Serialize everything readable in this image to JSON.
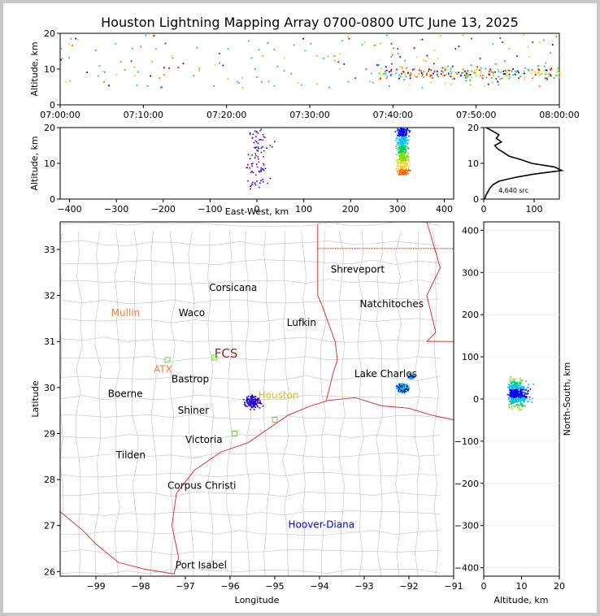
{
  "title": "Houston Lightning Mapping Array 0700-0800 UTC June 13, 2025",
  "panels": {
    "time_height": {
      "ylabel": "Altitude, km",
      "yticks": [
        "0",
        "10",
        "20"
      ],
      "xticks": [
        "07:00:00",
        "07:10:00",
        "07:20:00",
        "07:30:00",
        "07:40:00",
        "07:50:00",
        "08:00:00"
      ]
    },
    "ew_height": {
      "xlabel": "East-West, km",
      "ylabel": "Altitude, km",
      "xticks": [
        "−400",
        "−300",
        "−200",
        "−100",
        "0",
        "100",
        "200",
        "300",
        "400"
      ],
      "yticks": [
        "0",
        "10",
        "20"
      ]
    },
    "histogram": {
      "xticks": [
        "0",
        "100"
      ],
      "yticks": [
        "0",
        "10",
        "20"
      ],
      "source_count": "4,640 src"
    },
    "map": {
      "xlabel": "Longitude",
      "ylabel": "Latitude",
      "xticks": [
        "−99",
        "−98",
        "−97",
        "−96",
        "−95",
        "−94",
        "−93",
        "−92",
        "−91"
      ],
      "yticks": [
        "26",
        "27",
        "28",
        "29",
        "30",
        "31",
        "32",
        "33"
      ],
      "city_labels": [
        {
          "name": "Shreveport",
          "color": "#000000"
        },
        {
          "name": "Corsicana",
          "color": "#000000"
        },
        {
          "name": "Natchitoches",
          "color": "#000000"
        },
        {
          "name": "Mullin",
          "color": "#f08040"
        },
        {
          "name": "Waco",
          "color": "#000000"
        },
        {
          "name": "Lufkin",
          "color": "#000000"
        },
        {
          "name": "FCS",
          "color": "#8b2a1a"
        },
        {
          "name": "ATX",
          "color": "#f08040"
        },
        {
          "name": "Bastrop",
          "color": "#000000"
        },
        {
          "name": "Lake Charles",
          "color": "#000000"
        },
        {
          "name": "Boerne",
          "color": "#000000"
        },
        {
          "name": "Houston",
          "color": "#f0b400"
        },
        {
          "name": "Shiner",
          "color": "#000000"
        },
        {
          "name": "Victoria",
          "color": "#000000"
        },
        {
          "name": "Tilden",
          "color": "#000000"
        },
        {
          "name": "Corpus Christi",
          "color": "#000000"
        },
        {
          "name": "Hoover-Diana",
          "color": "#0000e0"
        },
        {
          "name": "Port Isabel",
          "color": "#000000"
        }
      ]
    },
    "ns_height": {
      "xlabel": "Altitude, km",
      "ylabel": "North-South, km",
      "xticks": [
        "0",
        "10",
        "20"
      ],
      "yticks": [
        "−400",
        "−300",
        "−200",
        "−100",
        "0",
        "100",
        "200",
        "300",
        "400"
      ]
    }
  },
  "colors": {
    "border": "#e02020",
    "county": "#c0c0c0",
    "palette": [
      "#0000ff",
      "#00c0ff",
      "#00d060",
      "#80e000",
      "#ffd000",
      "#ff6000",
      "#e00000",
      "#800080"
    ]
  },
  "chart_data": {
    "type": "scatter",
    "title": "Houston Lightning Mapping Array 0700-0800 UTC June 13, 2025",
    "source_count": 4640,
    "time_range": [
      "07:00:00",
      "08:00:00"
    ],
    "altitude_range_km": [
      0,
      20
    ],
    "east_west_range_km": [
      -420,
      420
    ],
    "north_south_range_km": [
      -420,
      420
    ],
    "longitude_range": [
      -99.8,
      -91
    ],
    "latitude_range": [
      25.9,
      33.6
    ],
    "clusters": [
      {
        "region": "west of Houston",
        "lon": -95.5,
        "lat": 29.7,
        "ew_km": 0,
        "ns_km": 10,
        "alt_km": [
          3,
          20
        ],
        "time_range": [
          "07:00:00",
          "08:00:00"
        ],
        "density": "sparse"
      },
      {
        "region": "near Lake Charles",
        "lon": -92.1,
        "lat": 29.9,
        "ew_km": 310,
        "ns_km": 15,
        "alt_km": [
          7,
          20
        ],
        "time_range": [
          "07:38:00",
          "08:00:00"
        ],
        "density": "dense"
      }
    ],
    "altitude_histogram": {
      "altitude_km": [
        0,
        1,
        2,
        3,
        4,
        5,
        6,
        7,
        8,
        9,
        10,
        11,
        12,
        13,
        14,
        15,
        16,
        17,
        18,
        19,
        20
      ],
      "count": [
        2,
        4,
        8,
        12,
        18,
        30,
        60,
        100,
        155,
        140,
        95,
        75,
        50,
        40,
        28,
        22,
        35,
        25,
        30,
        18,
        5
      ]
    }
  }
}
